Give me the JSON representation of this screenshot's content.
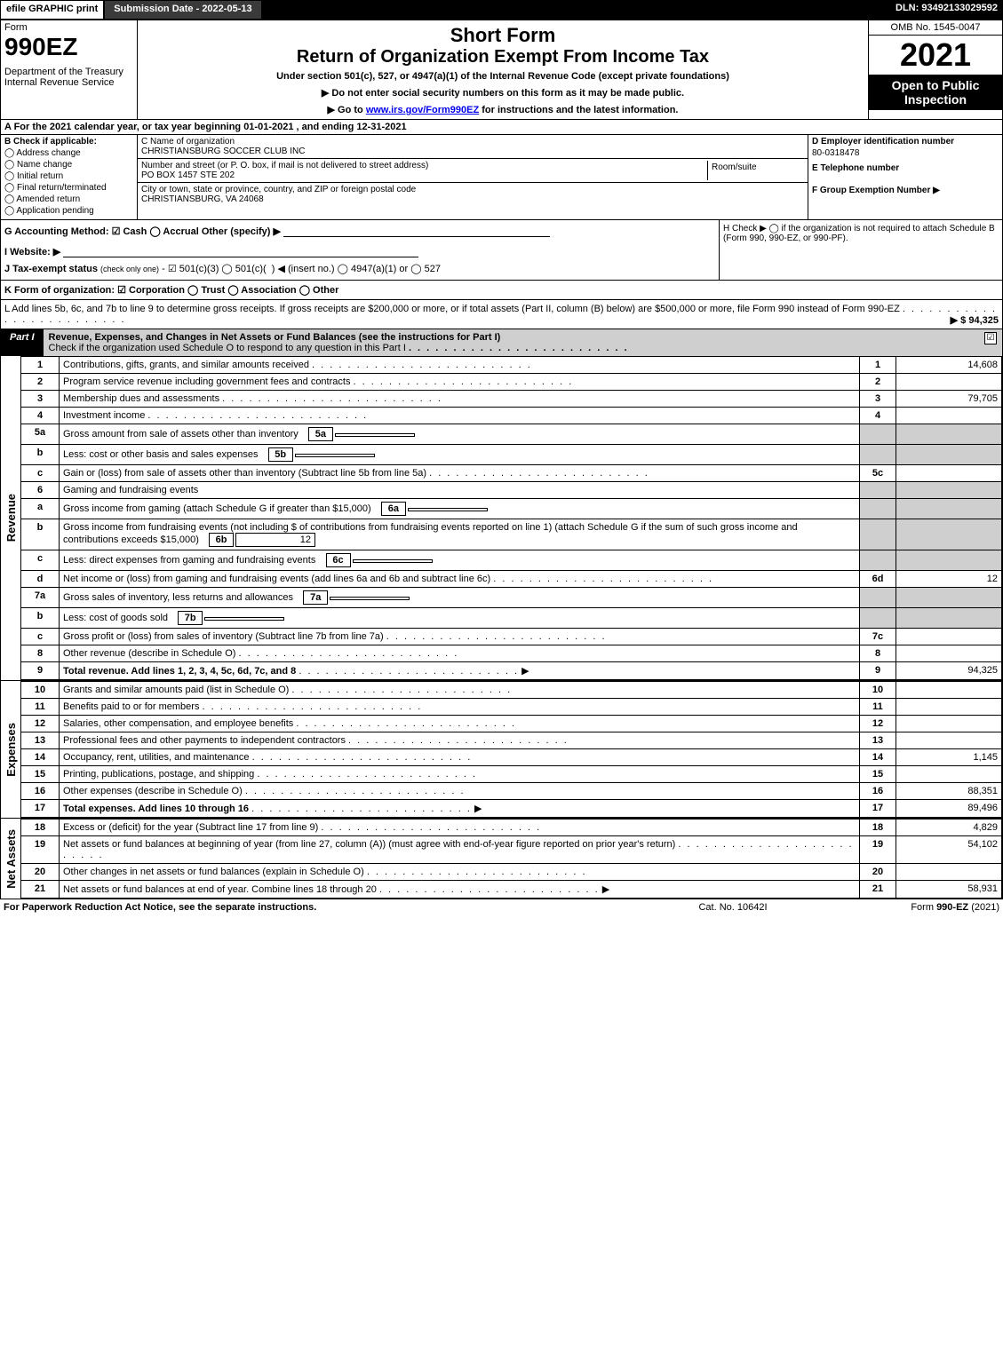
{
  "topbar": {
    "efile": "efile GRAPHIC print",
    "subdate": "Submission Date - 2022-05-13",
    "dln": "DLN: 93492133029592"
  },
  "header": {
    "form_word": "Form",
    "form_num": "990EZ",
    "dept": "Department of the Treasury\nInternal Revenue Service",
    "short": "Short Form",
    "title": "Return of Organization Exempt From Income Tax",
    "under": "Under section 501(c), 527, or 4947(a)(1) of the Internal Revenue Code (except private foundations)",
    "bullet1": "▶ Do not enter social security numbers on this form as it may be made public.",
    "bullet2_pre": "▶ Go to ",
    "bullet2_link": "www.irs.gov/Form990EZ",
    "bullet2_post": " for instructions and the latest information.",
    "omb": "OMB No. 1545-0047",
    "year": "2021",
    "open": "Open to Public Inspection"
  },
  "section_a": "A  For the 2021 calendar year, or tax year beginning 01-01-2021 , and ending 12-31-2021",
  "box_b": {
    "label": "B  Check if applicable:",
    "opts": [
      "Address change",
      "Name change",
      "Initial return",
      "Final return/terminated",
      "Amended return",
      "Application pending"
    ]
  },
  "box_c": {
    "name_lbl": "C Name of organization",
    "name_val": "CHRISTIANSBURG SOCCER CLUB INC",
    "addr_lbl": "Number and street (or P. O. box, if mail is not delivered to street address)",
    "addr_val": "PO BOX 1457 STE 202",
    "room_lbl": "Room/suite",
    "city_lbl": "City or town, state or province, country, and ZIP or foreign postal code",
    "city_val": "CHRISTIANSBURG, VA  24068"
  },
  "box_d": {
    "ein_lbl": "D Employer identification number",
    "ein_val": "80-0318478",
    "tel_lbl": "E Telephone number",
    "grp_lbl": "F Group Exemption Number   ▶"
  },
  "row_g": {
    "g": "G Accounting Method:   ☑ Cash  ◯ Accrual   Other (specify) ▶",
    "i": "I Website: ▶",
    "j": "J Tax-exempt status (check only one) - ☑ 501(c)(3) ◯ 501(c)(  ) ◀ (insert no.) ◯ 4947(a)(1) or ◯ 527",
    "h": "H  Check ▶  ◯ if the organization is not required to attach Schedule B (Form 990, 990-EZ, or 990-PF)."
  },
  "row_k": "K Form of organization:  ☑ Corporation  ◯ Trust  ◯ Association  ◯ Other",
  "row_l": {
    "text": "L Add lines 5b, 6c, and 7b to line 9 to determine gross receipts. If gross receipts are $200,000 or more, or if total assets (Part II, column (B) below) are $500,000 or more, file Form 990 instead of Form 990-EZ",
    "amount": "▶ $ 94,325"
  },
  "part1": {
    "tab": "Part I",
    "desc": "Revenue, Expenses, and Changes in Net Assets or Fund Balances (see the instructions for Part I)",
    "check_line": "Check if the organization used Schedule O to respond to any question in this Part I",
    "checked": "☑"
  },
  "revenue_lines": [
    {
      "n": "1",
      "d": "Contributions, gifts, grants, and similar amounts received",
      "box": "1",
      "val": "14,608"
    },
    {
      "n": "2",
      "d": "Program service revenue including government fees and contracts",
      "box": "2",
      "val": ""
    },
    {
      "n": "3",
      "d": "Membership dues and assessments",
      "box": "3",
      "val": "79,705"
    },
    {
      "n": "4",
      "d": "Investment income",
      "box": "4",
      "val": ""
    },
    {
      "n": "5a",
      "d": "Gross amount from sale of assets other than inventory",
      "sub": "5a",
      "subval": ""
    },
    {
      "n": "b",
      "d": "Less: cost or other basis and sales expenses",
      "sub": "5b",
      "subval": ""
    },
    {
      "n": "c",
      "d": "Gain or (loss) from sale of assets other than inventory (Subtract line 5b from line 5a)",
      "box": "5c",
      "val": ""
    },
    {
      "n": "6",
      "d": "Gaming and fundraising events"
    },
    {
      "n": "a",
      "d": "Gross income from gaming (attach Schedule G if greater than $15,000)",
      "sub": "6a",
      "subval": ""
    },
    {
      "n": "b",
      "d": "Gross income from fundraising events (not including $                       of contributions from fundraising events reported on line 1) (attach Schedule G if the sum of such gross income and contributions exceeds $15,000)",
      "sub": "6b",
      "subval": "12"
    },
    {
      "n": "c",
      "d": "Less: direct expenses from gaming and fundraising events",
      "sub": "6c",
      "subval": ""
    },
    {
      "n": "d",
      "d": "Net income or (loss) from gaming and fundraising events (add lines 6a and 6b and subtract line 6c)",
      "box": "6d",
      "val": "12"
    },
    {
      "n": "7a",
      "d": "Gross sales of inventory, less returns and allowances",
      "sub": "7a",
      "subval": ""
    },
    {
      "n": "b",
      "d": "Less: cost of goods sold",
      "sub": "7b",
      "subval": ""
    },
    {
      "n": "c",
      "d": "Gross profit or (loss) from sales of inventory (Subtract line 7b from line 7a)",
      "box": "7c",
      "val": ""
    },
    {
      "n": "8",
      "d": "Other revenue (describe in Schedule O)",
      "box": "8",
      "val": ""
    },
    {
      "n": "9",
      "d": "Total revenue. Add lines 1, 2, 3, 4, 5c, 6d, 7c, and 8",
      "box": "9",
      "val": "94,325",
      "bold": true,
      "arrow": true
    }
  ],
  "expense_lines": [
    {
      "n": "10",
      "d": "Grants and similar amounts paid (list in Schedule O)",
      "box": "10",
      "val": ""
    },
    {
      "n": "11",
      "d": "Benefits paid to or for members",
      "box": "11",
      "val": ""
    },
    {
      "n": "12",
      "d": "Salaries, other compensation, and employee benefits",
      "box": "12",
      "val": ""
    },
    {
      "n": "13",
      "d": "Professional fees and other payments to independent contractors",
      "box": "13",
      "val": ""
    },
    {
      "n": "14",
      "d": "Occupancy, rent, utilities, and maintenance",
      "box": "14",
      "val": "1,145"
    },
    {
      "n": "15",
      "d": "Printing, publications, postage, and shipping",
      "box": "15",
      "val": ""
    },
    {
      "n": "16",
      "d": "Other expenses (describe in Schedule O)",
      "box": "16",
      "val": "88,351"
    },
    {
      "n": "17",
      "d": "Total expenses. Add lines 10 through 16",
      "box": "17",
      "val": "89,496",
      "bold": true,
      "arrow": true
    }
  ],
  "netasset_lines": [
    {
      "n": "18",
      "d": "Excess or (deficit) for the year (Subtract line 17 from line 9)",
      "box": "18",
      "val": "4,829"
    },
    {
      "n": "19",
      "d": "Net assets or fund balances at beginning of year (from line 27, column (A)) (must agree with end-of-year figure reported on prior year's return)",
      "box": "19",
      "val": "54,102"
    },
    {
      "n": "20",
      "d": "Other changes in net assets or fund balances (explain in Schedule O)",
      "box": "20",
      "val": ""
    },
    {
      "n": "21",
      "d": "Net assets or fund balances at end of year. Combine lines 18 through 20",
      "box": "21",
      "val": "58,931",
      "arrow": true
    }
  ],
  "side_labels": {
    "rev": "Revenue",
    "exp": "Expenses",
    "na": "Net Assets"
  },
  "footer": {
    "l": "For Paperwork Reduction Act Notice, see the separate instructions.",
    "m": "Cat. No. 10642I",
    "r_pre": "Form ",
    "r_bold": "990-EZ",
    "r_post": " (2021)"
  },
  "colors": {
    "black": "#000000",
    "gray": "#cfcfcf",
    "darkgray": "#3a3a3a",
    "white": "#ffffff"
  }
}
